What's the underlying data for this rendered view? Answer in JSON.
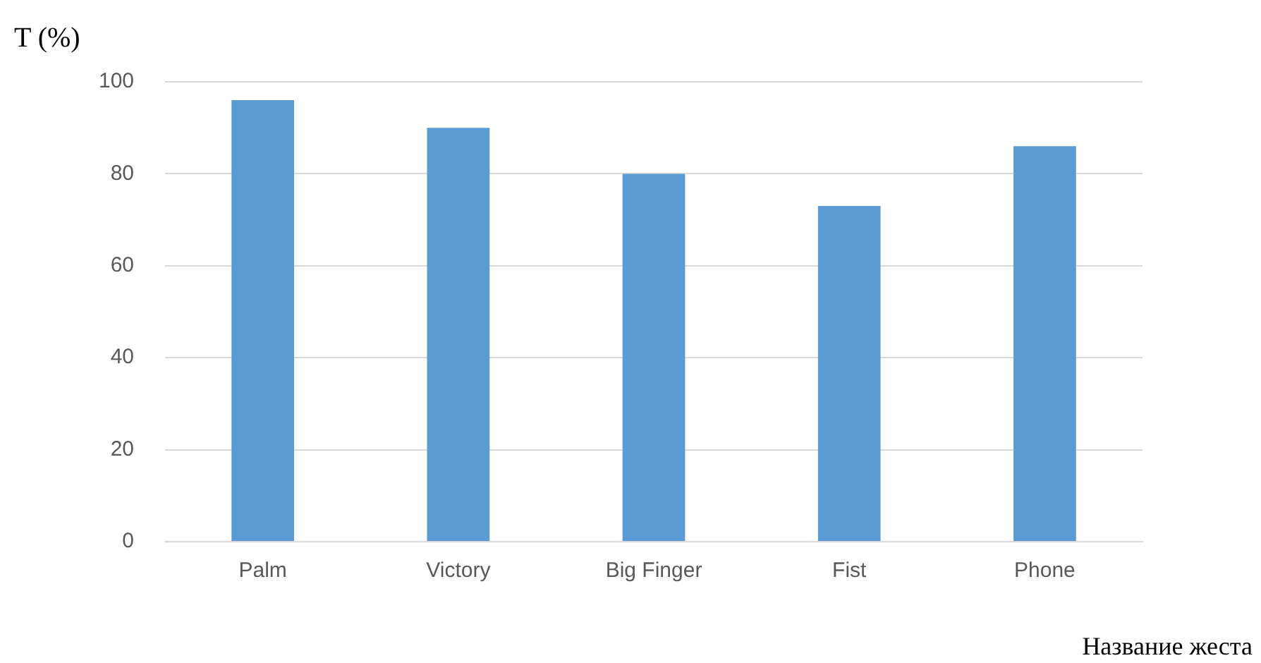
{
  "chart_data": {
    "type": "bar",
    "ylabel": "T (%)",
    "xlabel": "Название жеста",
    "categories": [
      "Palm",
      "Victory",
      "Big Finger",
      "Fist",
      "Phone"
    ],
    "values": [
      96,
      90,
      80,
      73,
      86
    ],
    "color": "#5b9bd5",
    "ylim": [
      0,
      100
    ],
    "yticks": [
      0,
      20,
      40,
      60,
      80,
      100
    ],
    "grid": "y",
    "legend": false
  }
}
